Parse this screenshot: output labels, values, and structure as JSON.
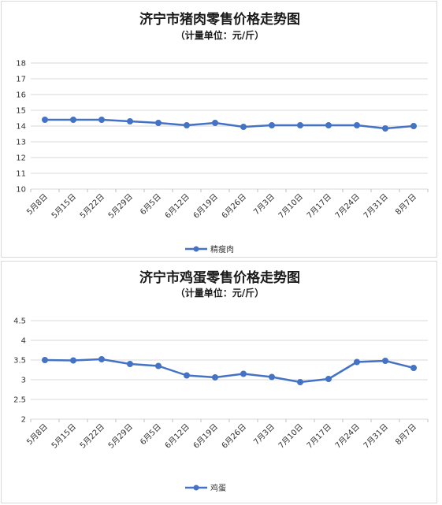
{
  "charts": [
    {
      "title": "济宁市猪肉零售价格走势图",
      "subtitle": "（计量单位：元/斤）"
    },
    {
      "title": "济宁市鸡蛋零售价格走势图",
      "subtitle": "（计量单位：元/斤）"
    }
  ],
  "chart_data": [
    {
      "type": "line",
      "title": "济宁市猪肉零售价格走势图",
      "subtitle": "（计量单位：元/斤）",
      "categories": [
        "5月8日",
        "5月15日",
        "5月22日",
        "5月29日",
        "6月5日",
        "6月12日",
        "6月19日",
        "6月26日",
        "7月3日",
        "7月10日",
        "7月17日",
        "7月24日",
        "7月31日",
        "8月7日"
      ],
      "series": [
        {
          "name": "精瘦肉",
          "values": [
            14.4,
            14.4,
            14.4,
            14.3,
            14.2,
            14.05,
            14.2,
            13.95,
            14.05,
            14.05,
            14.05,
            14.05,
            13.85,
            14.0
          ]
        }
      ],
      "ylim": [
        10,
        18
      ],
      "yticks": [
        "10",
        "11",
        "12",
        "13",
        "14",
        "15",
        "16",
        "17",
        "18"
      ],
      "grid": true,
      "legend": "bottom",
      "color": "#4472c4"
    },
    {
      "type": "line",
      "title": "济宁市鸡蛋零售价格走势图",
      "subtitle": "（计量单位：元/斤）",
      "categories": [
        "5月8日",
        "5月15日",
        "5月22日",
        "5月29日",
        "6月5日",
        "6月12日",
        "6月19日",
        "6月26日",
        "7月3日",
        "7月10日",
        "7月17日",
        "7月24日",
        "7月31日",
        "8月7日"
      ],
      "series": [
        {
          "name": "鸡蛋",
          "values": [
            3.5,
            3.49,
            3.52,
            3.4,
            3.35,
            3.11,
            3.06,
            3.15,
            3.07,
            2.94,
            3.02,
            3.45,
            3.48,
            3.3
          ]
        }
      ],
      "ylim": [
        2,
        4.5
      ],
      "yticks": [
        "2",
        "2.5",
        "3",
        "3.5",
        "4",
        "4.5"
      ],
      "grid": true,
      "legend": "bottom",
      "color": "#4472c4"
    }
  ]
}
